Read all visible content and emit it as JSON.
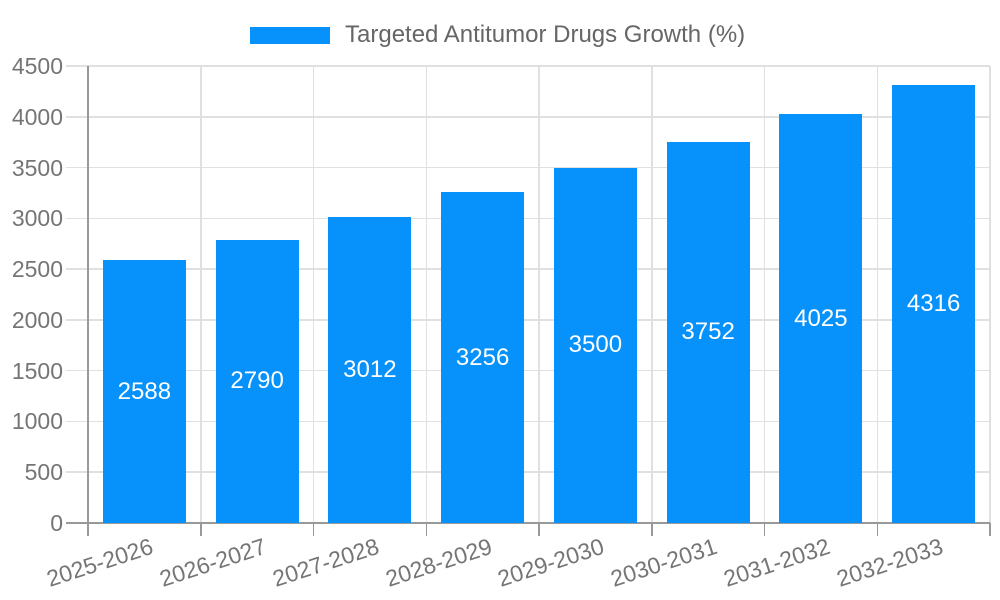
{
  "chart_data": {
    "type": "bar",
    "title": "Targeted Antitumor Drugs Growth (%)",
    "categories": [
      "2025-2026",
      "2026-2027",
      "2027-2028",
      "2028-2029",
      "2029-2030",
      "2030-2031",
      "2031-2032",
      "2032-2033"
    ],
    "values": [
      2588,
      2790,
      3012,
      3256,
      3500,
      3752,
      4025,
      4316
    ],
    "xlabel": "",
    "ylabel": "",
    "ylim": [
      0,
      4500
    ],
    "yticks": [
      0,
      500,
      1000,
      1500,
      2000,
      2500,
      3000,
      3500,
      4000,
      4500
    ],
    "grid": true,
    "legend_position": "top-center",
    "bar_label_position": "inside-center",
    "x_label_rotation_deg": -18,
    "colors": {
      "bar": "#0691fb",
      "axis": "#999999",
      "grid": "#e0e0e0",
      "tick_label": "#757575",
      "bar_label": "#ffffff",
      "legend_text": "#666666",
      "background": "#ffffff"
    }
  }
}
